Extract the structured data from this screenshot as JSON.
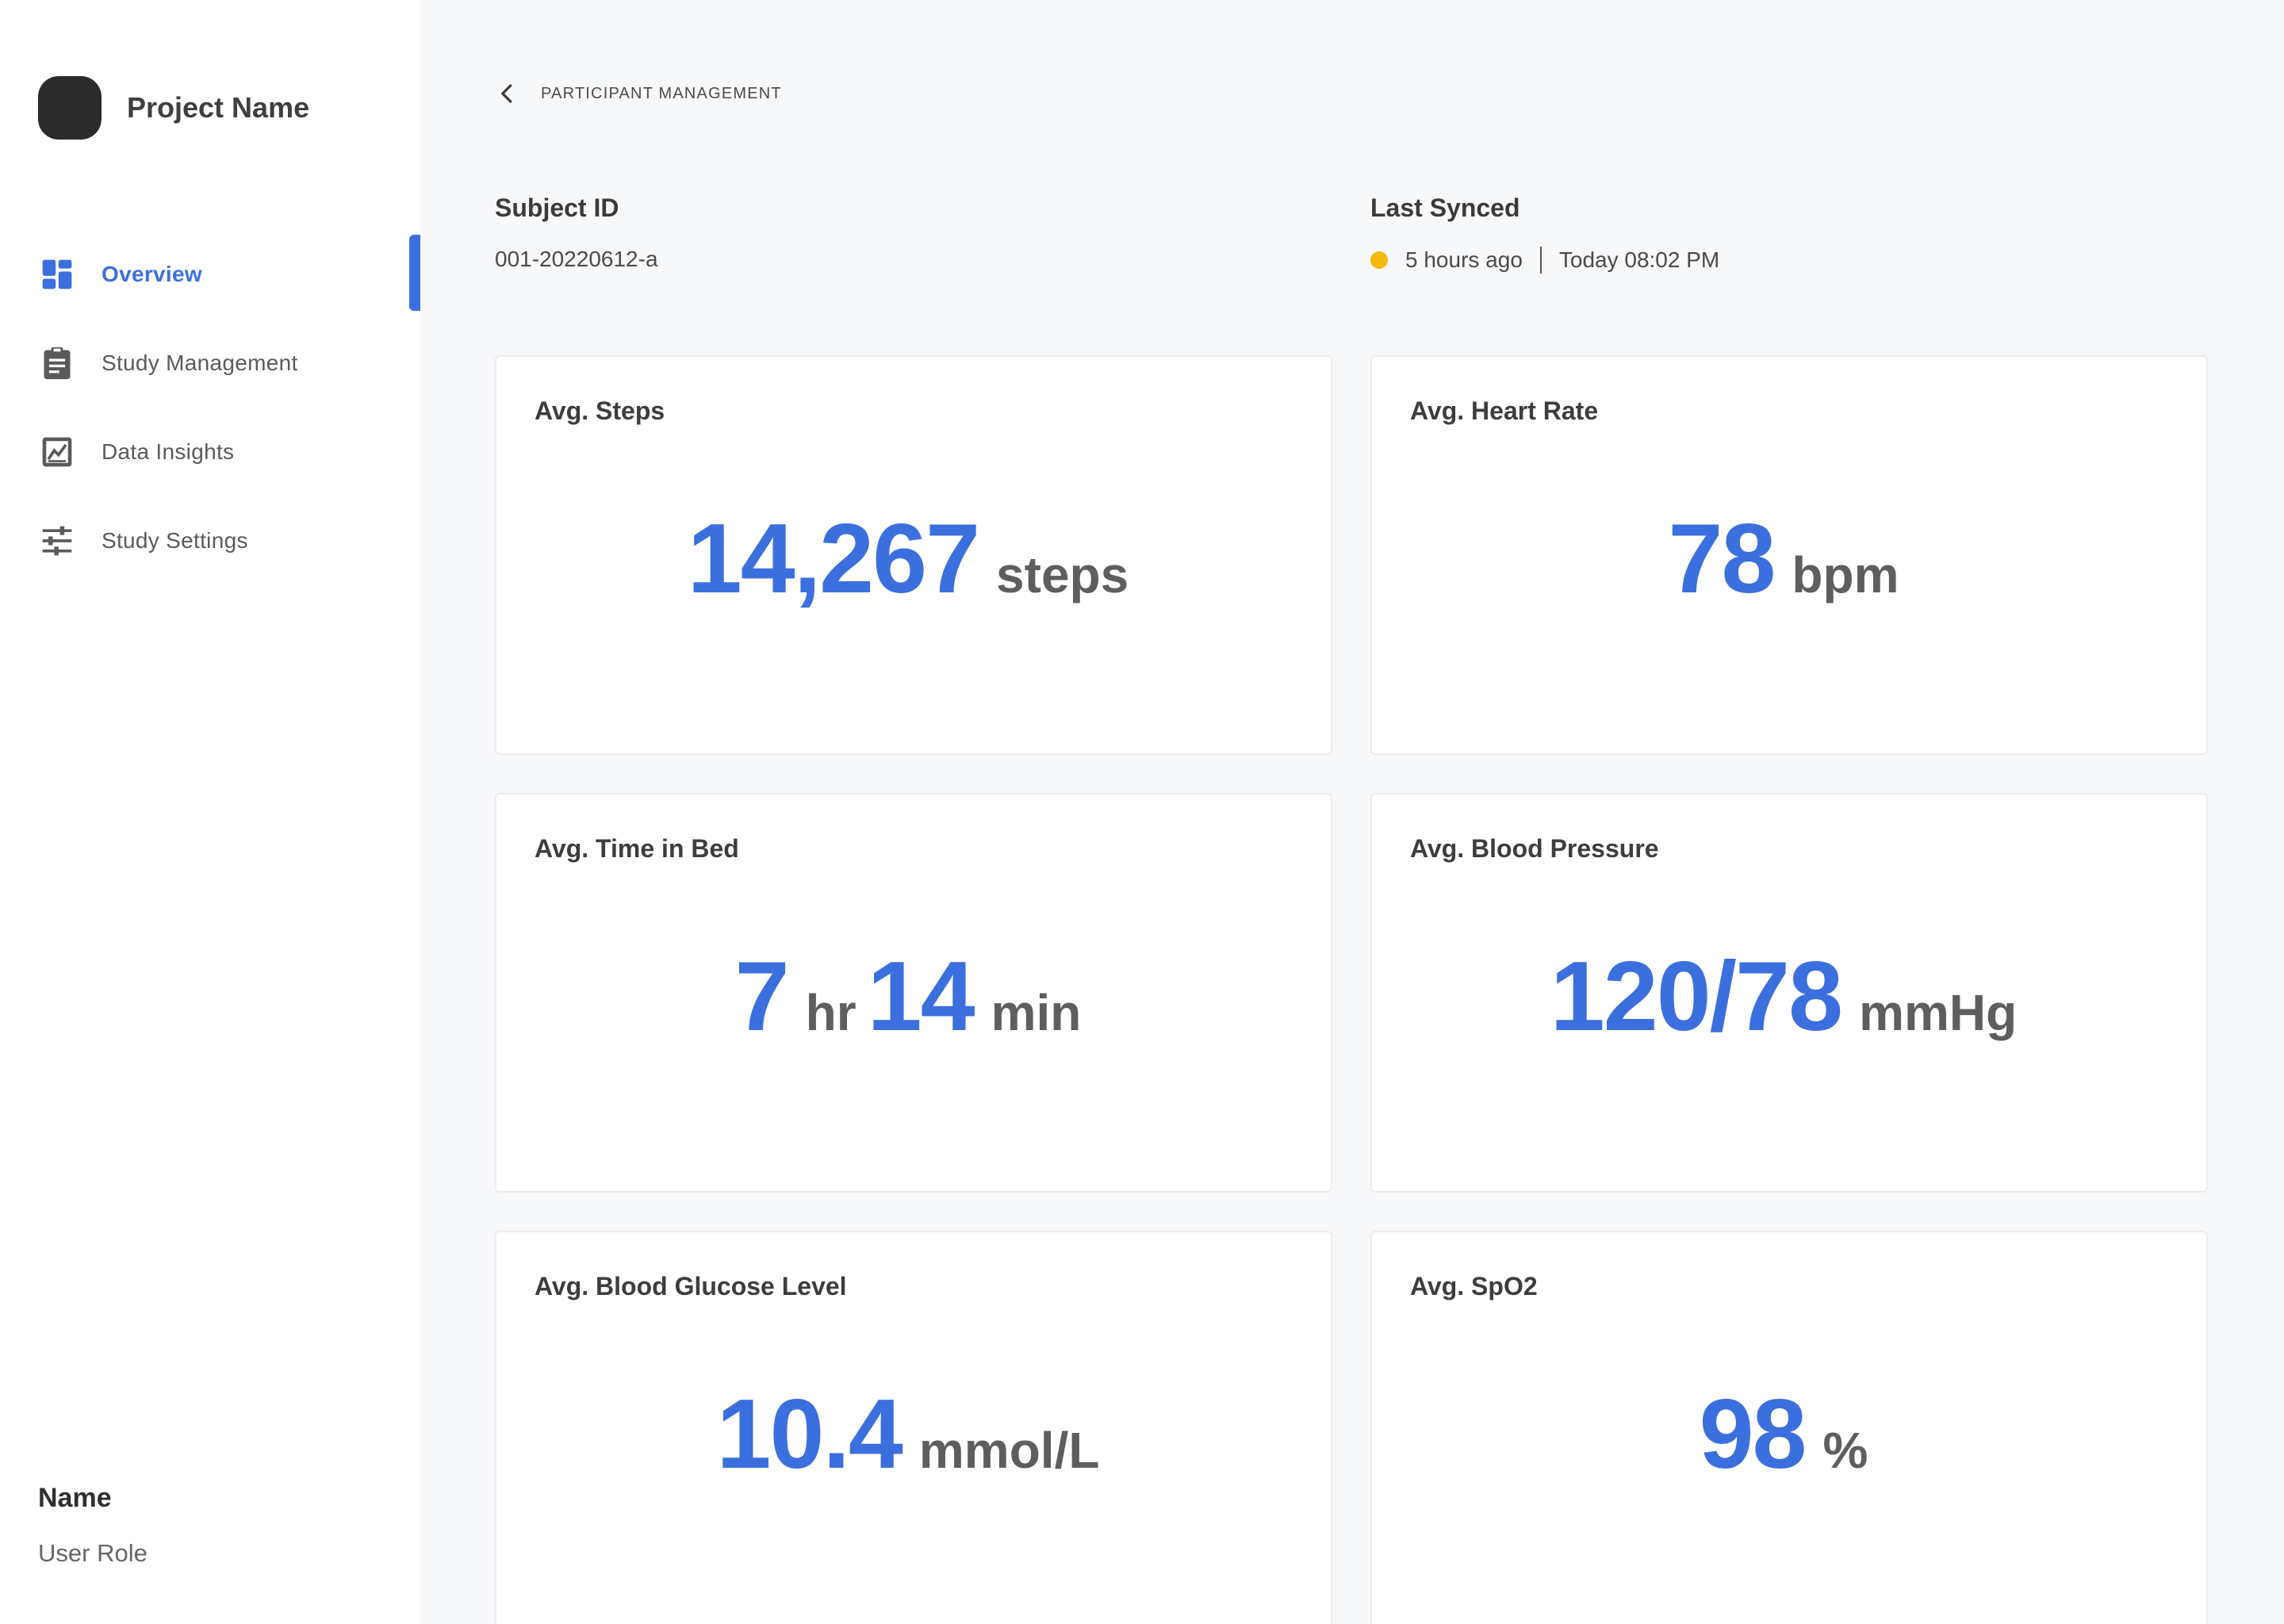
{
  "brand": {
    "name": "Project Name"
  },
  "sidebar": {
    "items": [
      {
        "label": "Overview",
        "icon": "dashboard-icon",
        "active": true
      },
      {
        "label": "Study Management",
        "icon": "clipboard-icon",
        "active": false
      },
      {
        "label": "Data Insights",
        "icon": "chart-icon",
        "active": false
      },
      {
        "label": "Study Settings",
        "icon": "sliders-icon",
        "active": false
      }
    ]
  },
  "user": {
    "name": "Name",
    "role": "User Role"
  },
  "breadcrumb": {
    "label": "PARTICIPANT MANAGEMENT"
  },
  "subject": {
    "label": "Subject ID",
    "value": "001-20220612-a"
  },
  "sync": {
    "label": "Last Synced",
    "relative": "5 hours ago",
    "absolute": "Today 08:02 PM",
    "status_color": "#f2b80c"
  },
  "cards": [
    {
      "title": "Avg. Steps",
      "value": "14,267",
      "unit": "steps"
    },
    {
      "title": "Avg. Heart Rate",
      "value": "78",
      "unit": "bpm"
    },
    {
      "title": "Avg. Time in Bed",
      "value_hr": "7",
      "unit_hr": "hr",
      "value_min": "14",
      "unit_min": "min"
    },
    {
      "title": "Avg. Blood Pressure",
      "value": "120/78",
      "unit": "mmHg"
    },
    {
      "title": "Avg. Blood Glucose Level",
      "value": "10.4",
      "unit": "mmol/L"
    },
    {
      "title": "Avg. SpO2",
      "value": "98",
      "unit": "%"
    }
  ],
  "colors": {
    "accent": "#3c6fde",
    "sidebar_bg": "#ffffff",
    "page_bg": "#f7f8fa"
  }
}
